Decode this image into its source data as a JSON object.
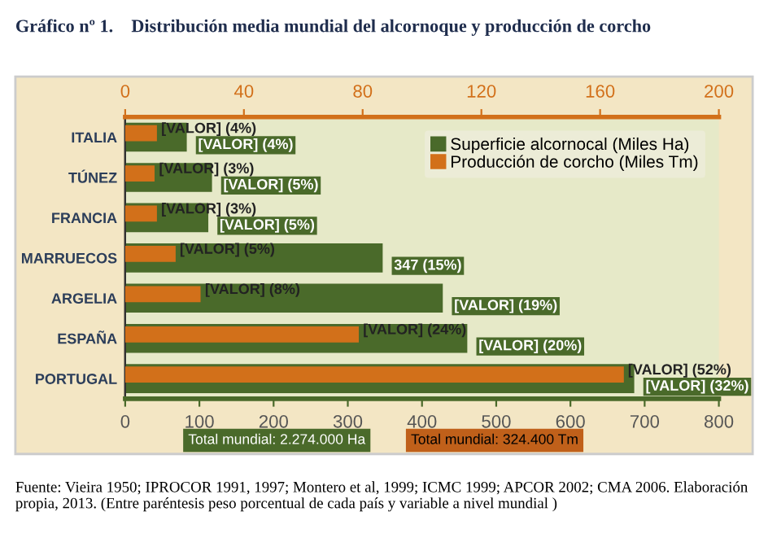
{
  "chart_data": {
    "type": "bar",
    "orientation": "horizontal",
    "title": "Gráfico nº 1.    Distribución media mundial del alcornoque y producción de corcho",
    "categories": [
      "ITALIA",
      "TÚNEZ",
      "FRANCIA",
      "MARRUECOS",
      "ARGELIA",
      "ESPAÑA",
      "PORTUGAL"
    ],
    "series": [
      {
        "name": "Superficie alcornocal (Miles Ha)",
        "color": "#4a6a2a",
        "values": [
          83,
          117,
          112,
          347,
          428,
          461,
          686
        ]
      },
      {
        "name": "Producción de corcho (Miles Tm)",
        "color": "#d2701a",
        "axis": "x2",
        "values": [
          10.7,
          9.9,
          10.7,
          17,
          25.4,
          78.7,
          168
        ]
      }
    ],
    "xlim": [
      0,
      800
    ],
    "xticks": [
      0,
      100,
      200,
      300,
      400,
      500,
      600,
      700,
      800
    ],
    "x2lim": [
      0,
      200
    ],
    "x2ticks": [
      0,
      40,
      80,
      120,
      160,
      200
    ],
    "legend": "top right",
    "grid": false,
    "annotations": [
      "Total mundial: 2.274.000 Ha",
      "Total mundial: 324.400 Tm",
      "Fuente: Vieira 1950; IPROCOR 1991, 1997; Montero et al, 1999; ICMC 1999; APCOR 2002; CMA 2006. Elaboración propia, 2013. (Entre paréntesis peso porcentual de cada país y variable a nivel mundial )",
      {
        "text": "[VALOR] (4%)",
        "x": 83,
        "y": "ITALIA"
      },
      {
        "text": "[VALOR] (5%)",
        "x": 117,
        "y": "TÚNEZ"
      },
      {
        "text": "[VALOR] (5%)",
        "x": 112,
        "y": "FRANCIA"
      },
      {
        "text": "347 (15%)",
        "x": 347,
        "y": "MARRUECOS"
      },
      {
        "text": "[VALOR] (19%)",
        "x": 428,
        "y": "ARGELIA"
      },
      {
        "text": "[VALOR] (20%)",
        "x": 461,
        "y": "ESPAÑA"
      },
      {
        "text": "[VALOR] (32%)",
        "x": 686,
        "y": "PORTUGAL"
      },
      {
        "text": "[VALOR] (4%)",
        "x": 43,
        "y": "ITALIA"
      },
      {
        "text": "[VALOR] (3%)",
        "x": 40,
        "y": "TÚNEZ"
      },
      {
        "text": "[VALOR] (3%)",
        "x": 43,
        "y": "FRANCIA"
      },
      {
        "text": "[VALOR] (5%)",
        "x": 68,
        "y": "MARRUECOS"
      },
      {
        "text": "[VALOR] (8%)",
        "x": 102,
        "y": "ARGELIA"
      },
      {
        "text": "[VALOR] (24%)",
        "x": 315,
        "y": "ESPAÑA"
      },
      {
        "text": "[VALOR] (52%)",
        "x": 672,
        "y": "PORTUGAL"
      }
    ]
  }
}
